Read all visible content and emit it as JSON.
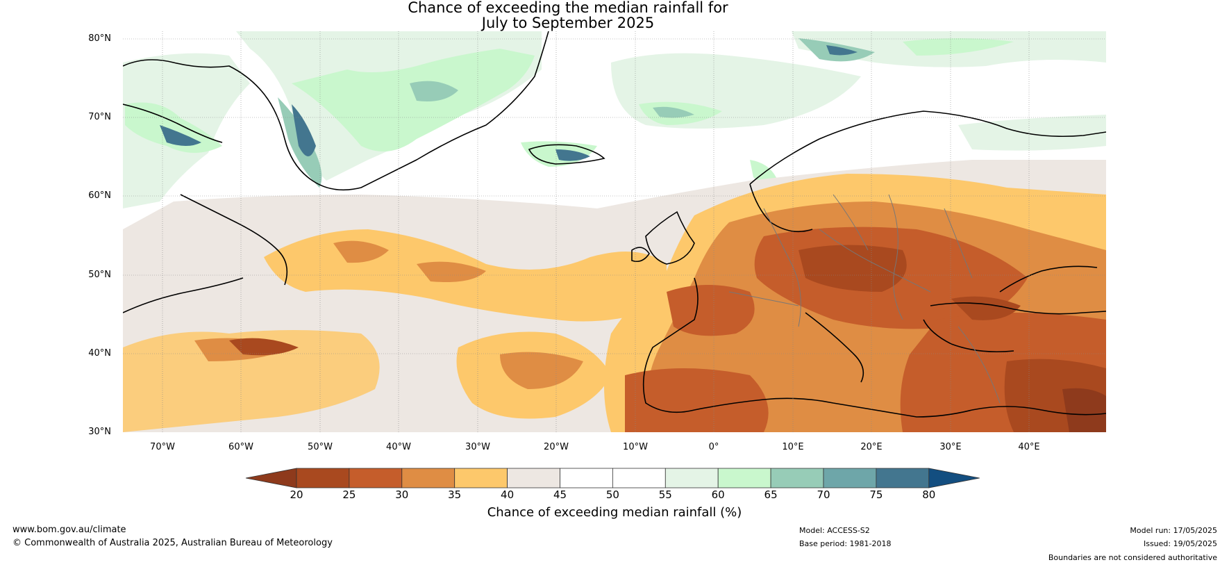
{
  "title": {
    "line1": "Chance of exceeding the median rainfall for",
    "line2": "July to September 2025"
  },
  "lat_labels": [
    "80°N",
    "70°N",
    "60°N",
    "50°N",
    "40°N",
    "30°N"
  ],
  "lon_labels": [
    "70°W",
    "60°W",
    "50°W",
    "40°W",
    "30°W",
    "20°W",
    "10°W",
    "0°",
    "10°E",
    "20°E",
    "30°E",
    "40°E"
  ],
  "colorbar": {
    "ticks": [
      "20",
      "25",
      "30",
      "35",
      "40",
      "45",
      "50",
      "55",
      "60",
      "65",
      "70",
      "75",
      "80"
    ],
    "label": "Chance of exceeding median rainfall (%)",
    "colors": [
      "#8e3a1c",
      "#a9491f",
      "#c55d2b",
      "#df8d44",
      "#fdc86b",
      "#ede7e2",
      "#ffffff",
      "#ffffff",
      "#e4f4e6",
      "#c9f7cd",
      "#97ccb7",
      "#6ea6a9",
      "#43768f",
      "#134e80"
    ]
  },
  "footer": {
    "website": "www.bom.gov.au/climate",
    "copyright": "© Commonwealth of Australia 2025, Australian Bureau of Meteorology",
    "model": "Model: ACCESS-S2",
    "base_period": "Base period: 1981-2018",
    "model_run": "Model run: 17/05/2025",
    "issued": "Issued: 19/05/2025",
    "disclaimer": "Boundaries are not considered authoritative"
  }
}
